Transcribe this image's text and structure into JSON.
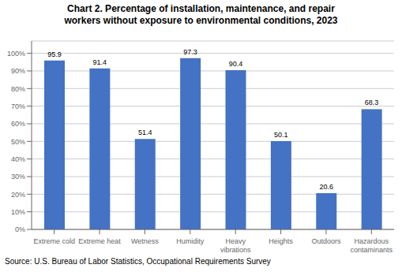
{
  "chart_data": {
    "type": "bar",
    "title": "Chart 2. Percentage of installation, maintenance, and repair\nworkers without exposure to environmental conditions, 2023",
    "categories": [
      "Extreme cold",
      "Extreme heat",
      "Wetness",
      "Humidity",
      "Heavy\nvibrations",
      "Heights",
      "Outdoors",
      "Hazardous\ncontaminants"
    ],
    "values": [
      95.9,
      91.4,
      51.4,
      97.3,
      90.4,
      50.1,
      20.6,
      68.3
    ],
    "color": "#4472C4",
    "ylim": [
      0,
      107
    ],
    "yticks": [
      {
        "value": 0,
        "label": "0%"
      },
      {
        "value": 10,
        "label": "10%"
      },
      {
        "value": 20,
        "label": "20%"
      },
      {
        "value": 30,
        "label": "30%"
      },
      {
        "value": 40,
        "label": "40%"
      },
      {
        "value": 50,
        "label": "50%"
      },
      {
        "value": 60,
        "label": "60%"
      },
      {
        "value": 70,
        "label": "70%"
      },
      {
        "value": 80,
        "label": "80%"
      },
      {
        "value": 90,
        "label": "90%"
      },
      {
        "value": 100,
        "label": "100%"
      }
    ],
    "grid": true,
    "data_labels": true,
    "annotations": [
      "Source: U.S. Bureau of Labor Statistics, Occupational Requirements Survey"
    ]
  }
}
